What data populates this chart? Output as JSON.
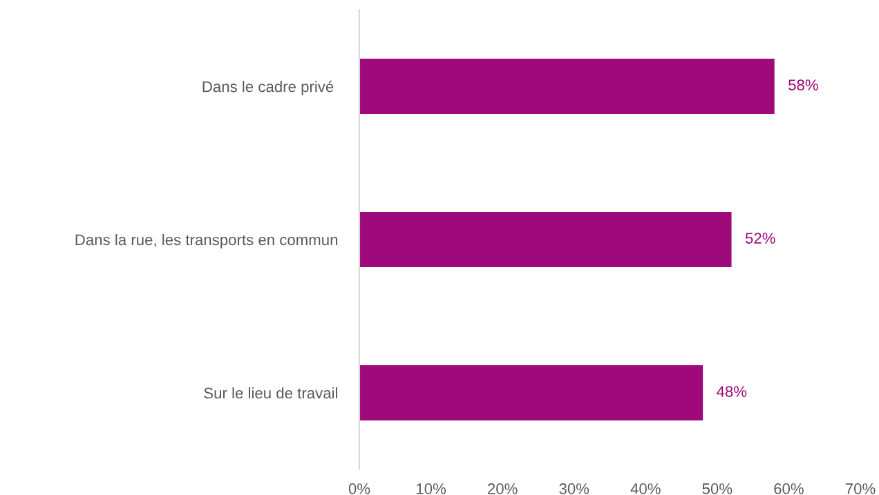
{
  "chart_data": {
    "type": "bar",
    "orientation": "horizontal",
    "categories": [
      "Dans le cadre privé ",
      "Dans la rue, les transports en commun",
      "Sur le lieu de travail"
    ],
    "values": [
      58,
      52,
      48
    ],
    "value_labels": [
      "58%",
      "52%",
      "48%"
    ],
    "color": "#9e0a7a",
    "xlim": [
      0,
      70
    ],
    "xticks": [
      {
        "value": 0,
        "label": "0%"
      },
      {
        "value": 10,
        "label": "10%"
      },
      {
        "value": 20,
        "label": "20%"
      },
      {
        "value": 30,
        "label": "30%"
      },
      {
        "value": 40,
        "label": "40%"
      },
      {
        "value": 50,
        "label": "50%"
      },
      {
        "value": 60,
        "label": "60%"
      },
      {
        "value": 70,
        "label": "70%"
      }
    ],
    "grid": false,
    "legend": false
  }
}
